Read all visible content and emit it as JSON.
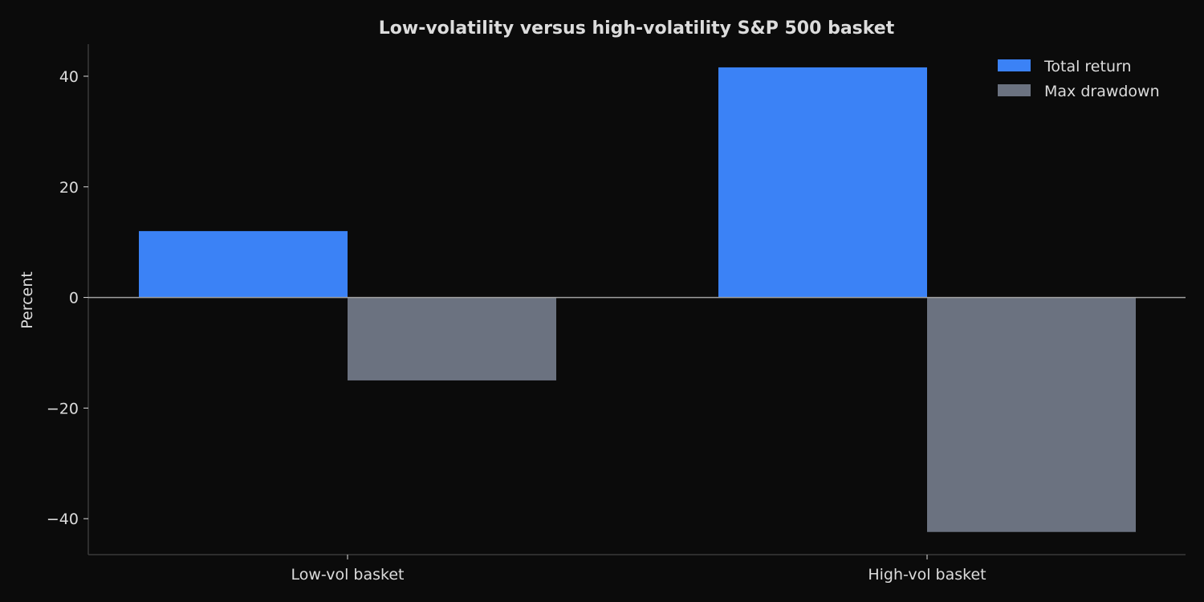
{
  "chart_data": {
    "type": "bar",
    "title": "Low-volatility versus high-volatility S&P 500 basket",
    "xlabel": "",
    "ylabel": "Percent",
    "categories": [
      "Low-vol basket",
      "High-vol basket"
    ],
    "series": [
      {
        "name": "Total return",
        "values": [
          12.0,
          41.6
        ],
        "color": "#3b82f6"
      },
      {
        "name": "Max drawdown",
        "values": [
          -15.0,
          -42.4
        ],
        "color": "#6b7280"
      }
    ],
    "ylim": [
      -46.5,
      45.8
    ],
    "yticks": [
      -40,
      -20,
      0,
      20,
      40
    ],
    "ytick_labels": [
      "−40",
      "−20",
      "0",
      "20",
      "40"
    ],
    "grid": false,
    "legend_position": "top-right",
    "colors": {
      "background": "#0b0b0b",
      "text": "#dcdcdc",
      "axis": "#3a3a3a",
      "zero_line": "#a0a0a0"
    }
  }
}
